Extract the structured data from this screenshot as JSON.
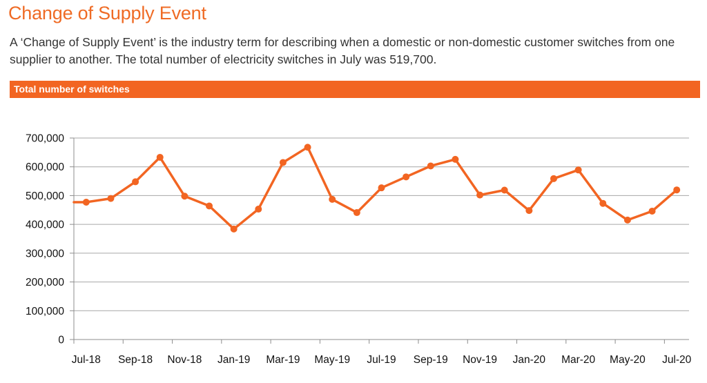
{
  "page": {
    "title": "Change of Supply Event",
    "intro": "A ‘Change of Supply Event’ is the industry term for describing when a domestic or non-domestic customer switches from one supplier to another. The total number of electricity switches in July was 519,700.",
    "section_header": "Total number of switches"
  },
  "colors": {
    "accent": "#f26522",
    "grid": "#a6a6a6"
  },
  "chart_data": {
    "type": "line",
    "title": "Total number of switches",
    "xlabel": "",
    "ylabel": "",
    "ylim": [
      0,
      700000
    ],
    "yticks": [
      0,
      100000,
      200000,
      300000,
      400000,
      500000,
      600000,
      700000
    ],
    "ytick_labels": [
      "0",
      "100,000",
      "200,000",
      "300,000",
      "400,000",
      "500,000",
      "600,000",
      "700,000"
    ],
    "x_tick_labels": [
      "Jul-18",
      "Sep-18",
      "Nov-18",
      "Jan-19",
      "Mar-19",
      "May-19",
      "Jul-19",
      "Sep-19",
      "Nov-19",
      "Jan-20",
      "Mar-20",
      "May-20",
      "Jul-20"
    ],
    "grid": true,
    "legend": "none",
    "categories": [
      "Jul-18",
      "Aug-18",
      "Sep-18",
      "Oct-18",
      "Nov-18",
      "Dec-18",
      "Jan-19",
      "Feb-19",
      "Mar-19",
      "Apr-19",
      "May-19",
      "Jun-19",
      "Jul-19",
      "Aug-19",
      "Sep-19",
      "Oct-19",
      "Nov-19",
      "Dec-19",
      "Jan-20",
      "Feb-20",
      "Mar-20",
      "Apr-20",
      "May-20",
      "Jun-20",
      "Jul-20"
    ],
    "series": [
      {
        "values": [
          477000,
          490000,
          548000,
          633000,
          498000,
          464000,
          384000,
          453000,
          615000,
          668000,
          487000,
          441000,
          527000,
          565000,
          603000,
          626000,
          502000,
          519000,
          448000,
          559000,
          589000,
          473000,
          415000,
          446000,
          519700
        ]
      }
    ]
  }
}
